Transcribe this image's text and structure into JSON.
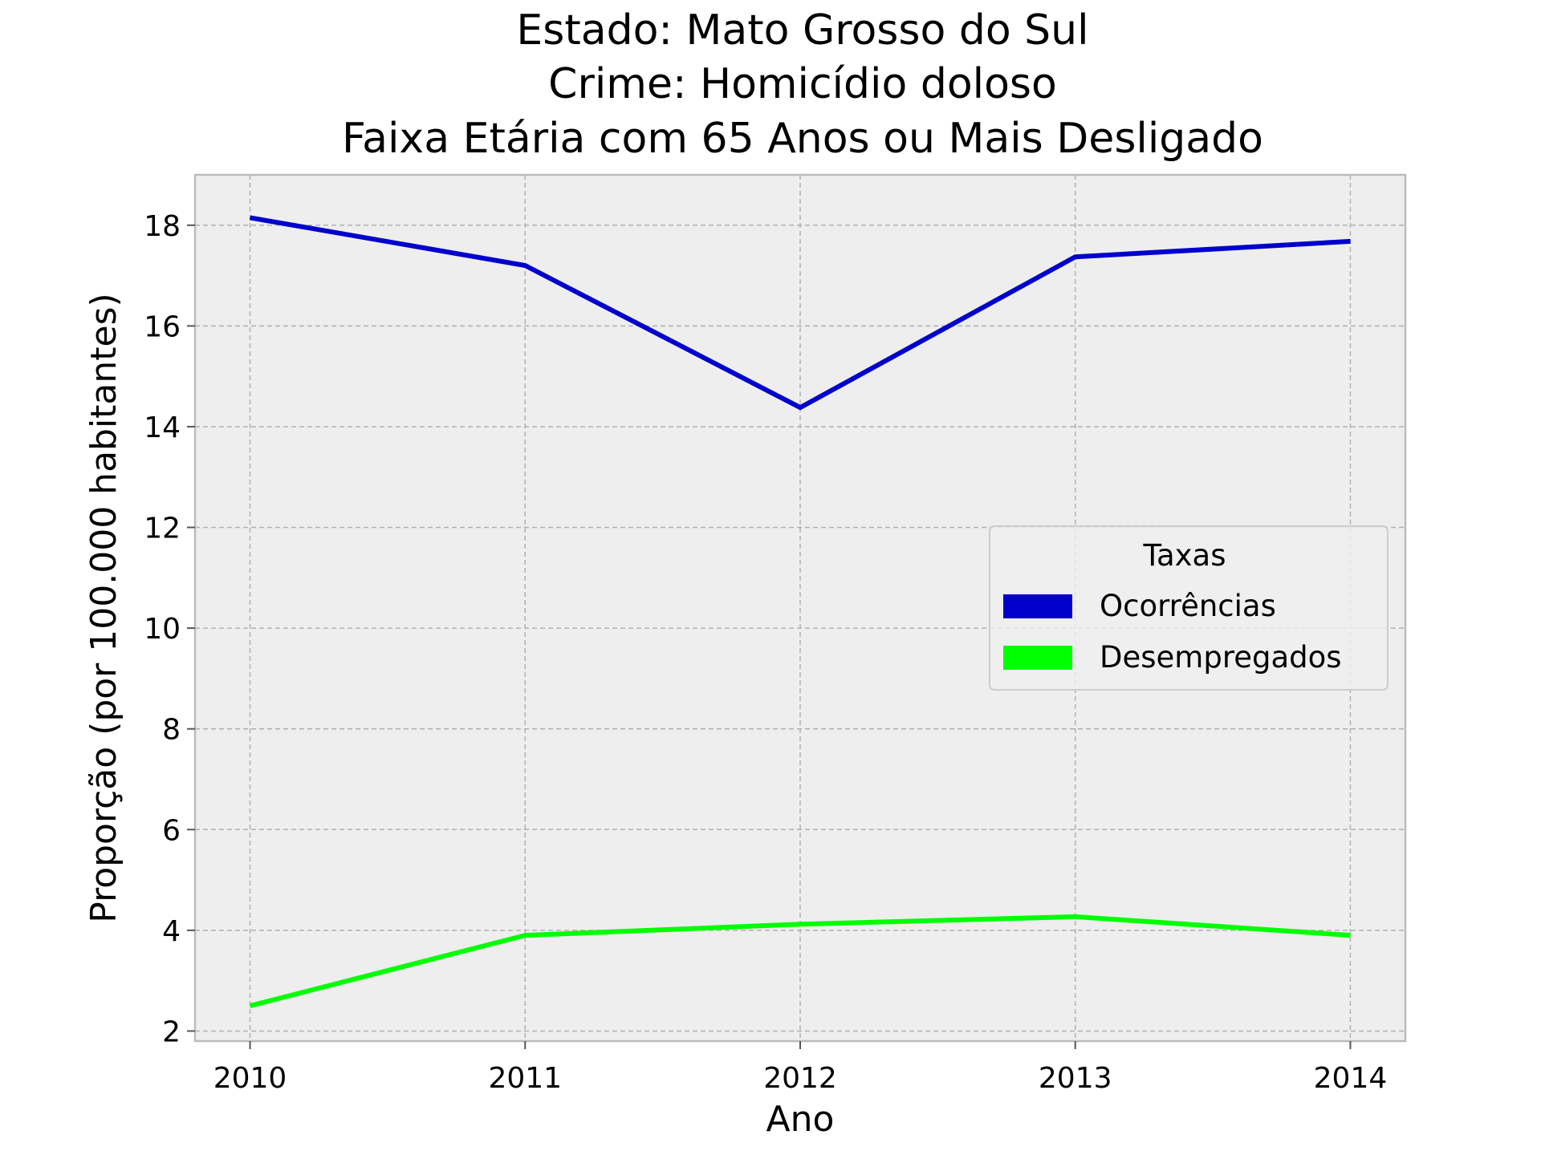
{
  "chart_data": {
    "type": "line",
    "title": [
      "Estado: Mato Grosso do Sul",
      "Crime: Homicídio doloso",
      "Faixa Etária com 65 Anos ou Mais   Desligado"
    ],
    "xlabel": "Ano",
    "ylabel": "Proporção (por 100.000 habitantes)",
    "x": [
      2010,
      2011,
      2012,
      2013,
      2014
    ],
    "x_tick_labels": [
      "2010",
      "2011",
      "2012",
      "2013",
      "2014"
    ],
    "xlim": [
      2009.8,
      2014.2
    ],
    "ylim": [
      1.8,
      19.0
    ],
    "y_ticks": [
      2,
      4,
      6,
      8,
      10,
      12,
      14,
      16,
      18
    ],
    "y_tick_labels": [
      "2",
      "4",
      "6",
      "8",
      "10",
      "12",
      "14",
      "16",
      "18"
    ],
    "grid": true,
    "legend": {
      "title": "Taxas",
      "placement": "center-right"
    },
    "series": [
      {
        "name": "Ocorrências",
        "color": "#0000cc",
        "values": [
          18.15,
          17.2,
          14.38,
          17.37,
          17.68
        ]
      },
      {
        "name": "Desempregados",
        "color": "#00ff00",
        "values": [
          2.5,
          3.9,
          4.12,
          4.27,
          3.9
        ]
      }
    ]
  }
}
